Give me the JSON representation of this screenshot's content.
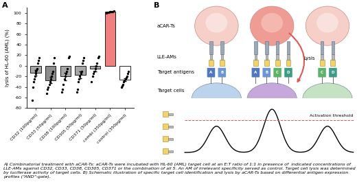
{
  "panel_labels": [
    "A",
    "B"
  ],
  "chart_data": {
    "type": "bar",
    "y_label": "lysis of HL-60 (AML) (%)",
    "categories": [
      "CD32 (100pg/ml)",
      "CD33 (50pg/ml)",
      "CD38 (100pg/ml)",
      "CD305 (50pg/ml)",
      "CD371 (50pg/ml)",
      "combi (350pg/ml)",
      "control (350pg/ml)"
    ],
    "values": [
      -13,
      -27,
      -20,
      -17,
      -5,
      102,
      -26
    ],
    "errors": [
      5,
      6,
      7,
      7,
      5,
      1,
      3
    ],
    "colors": [
      "#a6a6a6",
      "#8c8c8c",
      "#a6a6a6",
      "#a6a6a6",
      "#a6a6a6",
      "#f08080",
      "#ffffff"
    ],
    "points": [
      [
        -65,
        -40,
        -30,
        -25,
        -20,
        -15,
        -10,
        -8,
        -5,
        5,
        10,
        15
      ],
      [
        -52,
        -45,
        -40,
        -35,
        -30,
        -25,
        -20,
        -15,
        -10,
        5,
        15
      ],
      [
        -50,
        -45,
        -35,
        -25,
        -20,
        -15,
        -10,
        -5,
        15,
        18
      ],
      [
        -50,
        -45,
        -30,
        -25,
        -20,
        -15,
        -10,
        5,
        10,
        15
      ],
      [
        -30,
        -20,
        -15,
        -10,
        -5,
        0,
        5,
        15,
        18
      ],
      [
        100,
        101,
        101,
        102,
        102,
        103,
        103,
        104
      ],
      [
        -40,
        -38,
        -35,
        -30,
        -28,
        -25,
        -22,
        -20,
        -15,
        -10
      ]
    ],
    "ylim": [
      -80,
      110
    ],
    "yticks": [
      -80,
      -60,
      -40,
      -20,
      0,
      20,
      40,
      60,
      80,
      100
    ],
    "grid": false
  },
  "diagram": {
    "row_labels": [
      "aCAR-Ts",
      "LLE-AMs",
      "Target antigens",
      "Target cells"
    ],
    "cells": [
      {
        "antigens": [
          "A",
          "B"
        ]
      },
      {
        "antigens": [
          "A",
          "B",
          "C",
          "D"
        ]
      },
      {
        "antigens": [
          "C",
          "D"
        ]
      }
    ],
    "arrow_label": "Lysis",
    "threshold_label": "Activation threshold"
  },
  "caption": "A) Combinatorial treatment with aCAR-Ts: aCAR-Ts were incubated with HL-60 (AML) target cell at an E:T ratio of 1:1 in presence of  indicated concentrations of LLE-AMs against CD32, CD33, CD38, CD305, CD371 or the combination of all 5. An AM of irrelevant specificity served as control. Target cell lysis was determined by luciferase activity of target cells. B) Schematic illustration of specific target cell identification and lysis by aCAR-Ts based on differential antigen expression profiles (“AND”-gate)."
}
